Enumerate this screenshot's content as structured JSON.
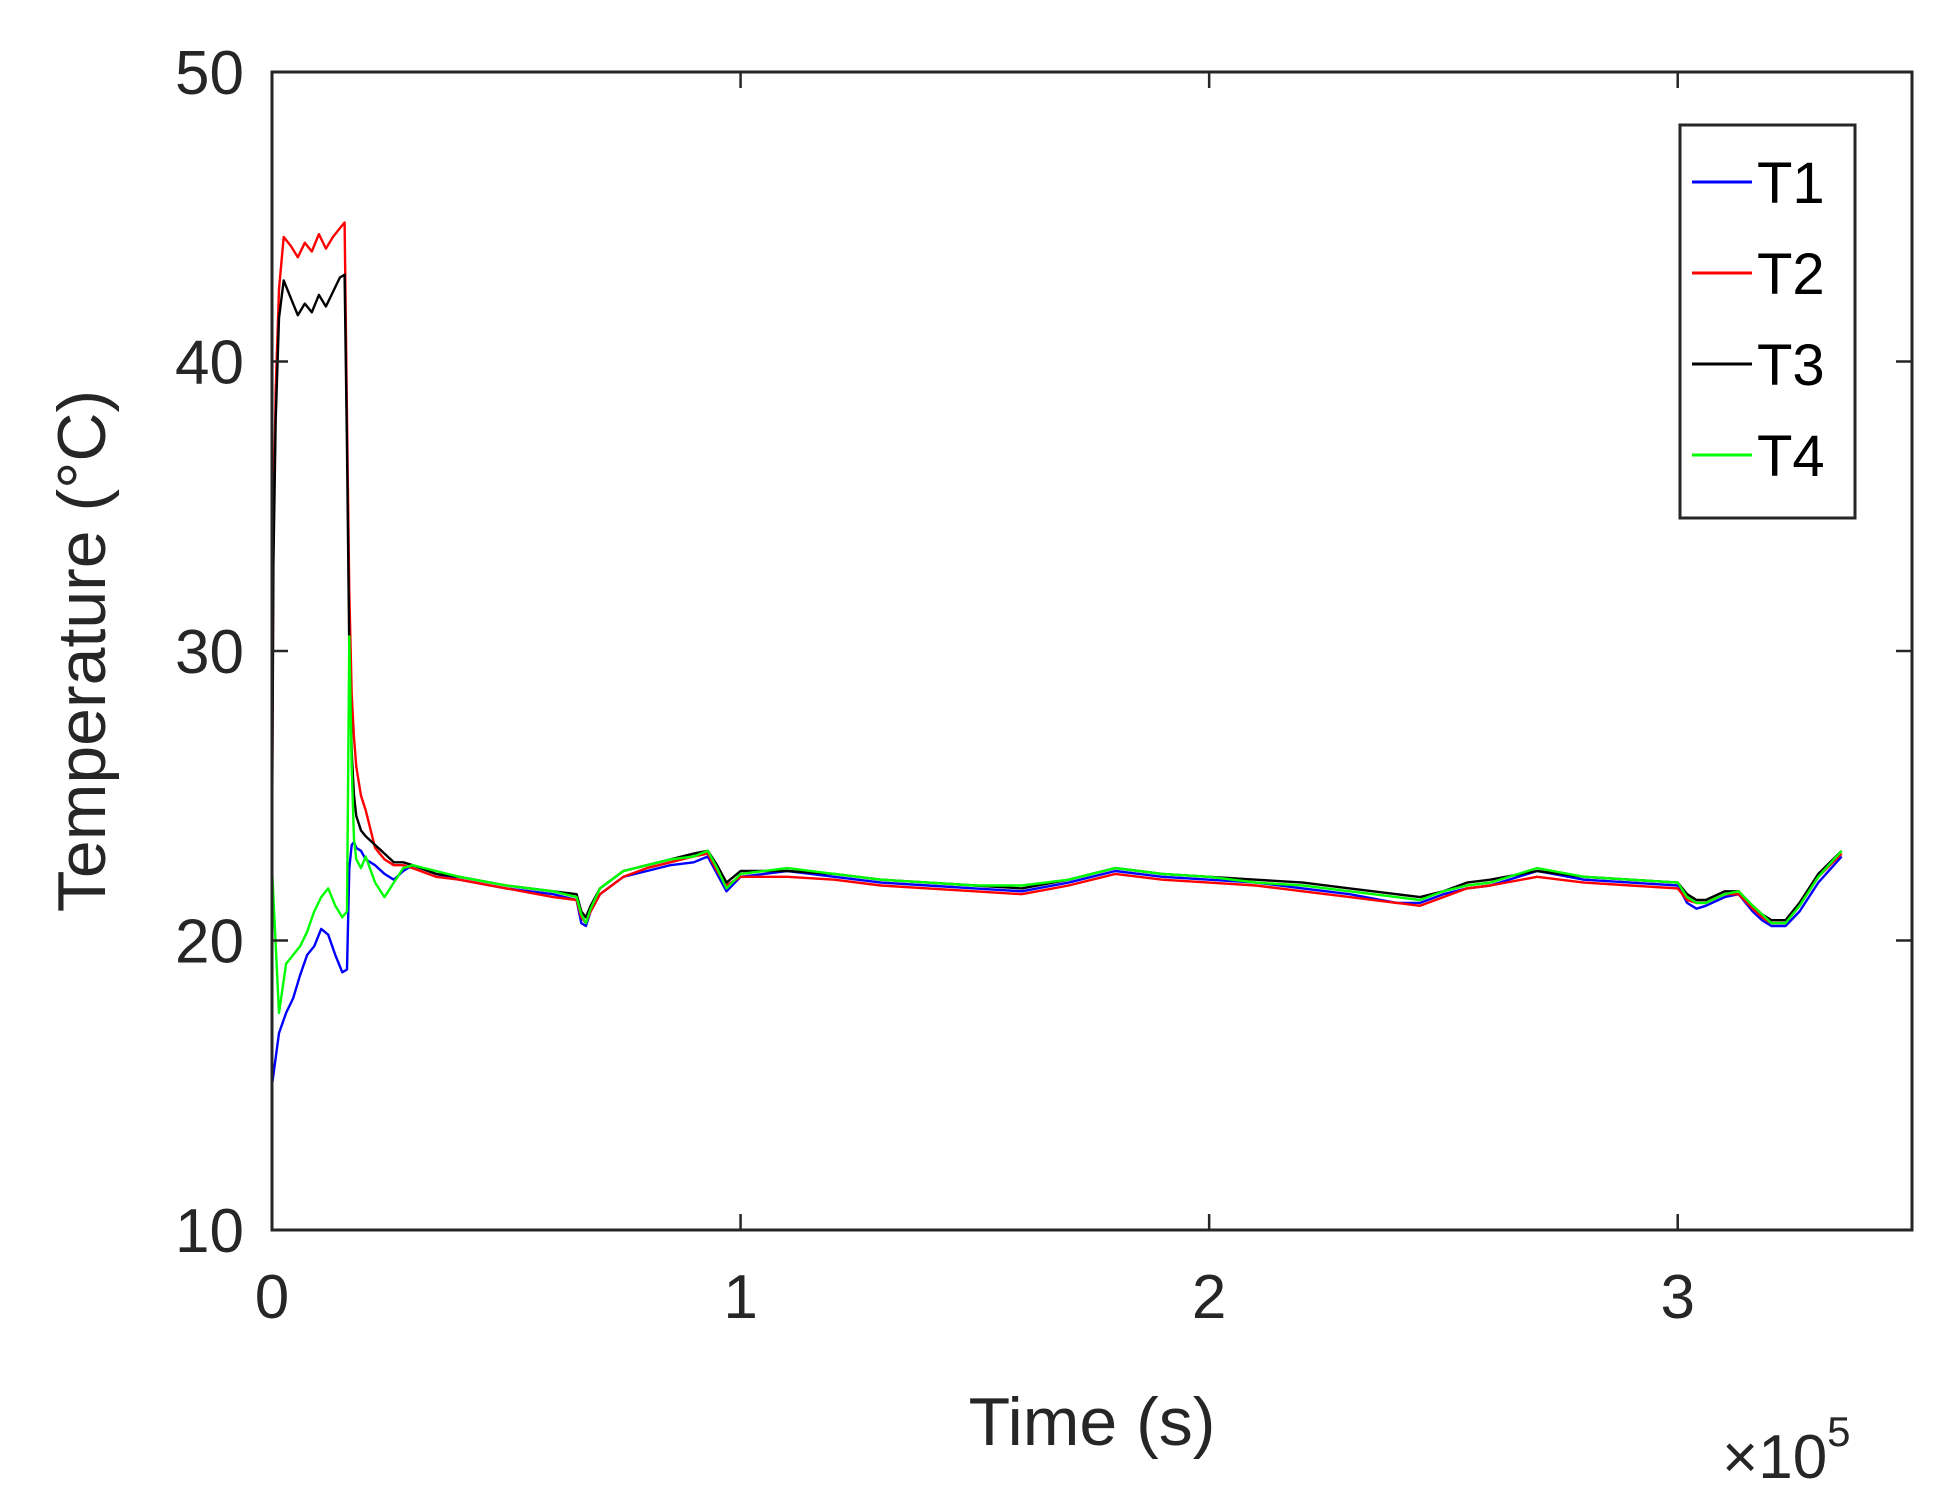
{
  "chart_data": {
    "type": "line",
    "xlabel": "Time (s)",
    "ylabel": "Temperature (°C)",
    "x_multiplier": {
      "base": "×10",
      "exponent": "5"
    },
    "xlim": [
      0,
      350000
    ],
    "ylim": [
      10,
      50
    ],
    "x_ticks": [
      0,
      100000,
      200000,
      300000
    ],
    "x_tick_labels": [
      "0",
      "1",
      "2",
      "3"
    ],
    "y_ticks": [
      10,
      20,
      30,
      40,
      50
    ],
    "y_tick_labels": [
      "10",
      "20",
      "30",
      "40",
      "50"
    ],
    "grid": false,
    "legend_position": "top-right",
    "series": [
      {
        "name": "T1",
        "color": "#0000ff",
        "x": [
          0,
          1500,
          3000,
          4500,
          6000,
          7500,
          9000,
          10500,
          12000,
          13500,
          15000,
          16000,
          16500,
          17000,
          17500,
          18000,
          19000,
          20000,
          22000,
          24000,
          26000,
          28000,
          30000,
          35000,
          40000,
          50000,
          60000,
          65000,
          66000,
          67000,
          68000,
          70000,
          75000,
          80000,
          85000,
          90000,
          93000,
          95000,
          97000,
          100000,
          110000,
          120000,
          130000,
          140000,
          150000,
          160000,
          170000,
          180000,
          190000,
          200000,
          210000,
          220000,
          230000,
          240000,
          245000,
          250000,
          255000,
          260000,
          270000,
          280000,
          290000,
          300000,
          302000,
          304000,
          306000,
          310000,
          313000,
          316000,
          318000,
          320000,
          323000,
          326000,
          330000,
          335000
        ],
        "values": [
          15.0,
          16.8,
          17.5,
          18.0,
          18.8,
          19.5,
          19.8,
          20.4,
          20.2,
          19.5,
          18.9,
          19.0,
          22.5,
          23.3,
          23.4,
          23.2,
          23.1,
          22.8,
          22.6,
          22.3,
          22.1,
          22.4,
          22.6,
          22.3,
          22.1,
          21.8,
          21.6,
          21.4,
          20.6,
          20.5,
          21.0,
          21.6,
          22.2,
          22.4,
          22.6,
          22.7,
          22.9,
          22.3,
          21.7,
          22.2,
          22.4,
          22.2,
          22.0,
          21.9,
          21.8,
          21.7,
          22.0,
          22.4,
          22.2,
          22.1,
          22.0,
          21.8,
          21.6,
          21.3,
          21.3,
          21.6,
          21.8,
          21.9,
          22.4,
          22.1,
          22.0,
          21.9,
          21.3,
          21.1,
          21.2,
          21.5,
          21.6,
          21.0,
          20.7,
          20.5,
          20.5,
          21.0,
          22.0,
          22.9
        ]
      },
      {
        "name": "T2",
        "color": "#ff0000",
        "x": [
          0,
          300,
          800,
          1500,
          2500,
          4000,
          5500,
          7000,
          8500,
          10000,
          11500,
          13000,
          14500,
          15500,
          16000,
          16500,
          17000,
          17500,
          18000,
          19000,
          20000,
          22000,
          24000,
          26000,
          28000,
          30000,
          35000,
          40000,
          50000,
          60000,
          65000,
          66000,
          67000,
          68000,
          70000,
          75000,
          80000,
          85000,
          90000,
          93000,
          95000,
          97000,
          100000,
          110000,
          120000,
          130000,
          140000,
          150000,
          160000,
          170000,
          180000,
          190000,
          200000,
          210000,
          220000,
          230000,
          240000,
          245000,
          250000,
          255000,
          260000,
          270000,
          280000,
          290000,
          300000,
          302000,
          304000,
          306000,
          310000,
          313000,
          316000,
          318000,
          320000,
          323000,
          326000,
          330000,
          335000
        ],
        "values": [
          23.5,
          34.0,
          39.0,
          42.5,
          44.3,
          44.0,
          43.6,
          44.1,
          43.8,
          44.4,
          43.9,
          44.3,
          44.6,
          44.8,
          38.0,
          32.0,
          28.5,
          27.0,
          26.0,
          25.0,
          24.5,
          23.2,
          22.8,
          22.6,
          22.6,
          22.5,
          22.2,
          22.1,
          21.8,
          21.5,
          21.4,
          20.8,
          20.6,
          21.0,
          21.6,
          22.2,
          22.5,
          22.7,
          22.9,
          23.0,
          22.4,
          21.9,
          22.2,
          22.2,
          22.1,
          21.9,
          21.8,
          21.7,
          21.6,
          21.9,
          22.3,
          22.1,
          22.0,
          21.9,
          21.7,
          21.5,
          21.3,
          21.2,
          21.5,
          21.8,
          21.9,
          22.2,
          22.0,
          21.9,
          21.8,
          21.4,
          21.3,
          21.3,
          21.6,
          21.6,
          21.1,
          20.8,
          20.6,
          20.6,
          21.2,
          22.2,
          23.0
        ]
      },
      {
        "name": "T3",
        "color": "#000000",
        "x": [
          0,
          300,
          800,
          1500,
          2500,
          4000,
          5500,
          7000,
          8500,
          10000,
          11500,
          13000,
          14500,
          15500,
          16000,
          16500,
          17000,
          17500,
          18000,
          19000,
          20000,
          22000,
          24000,
          26000,
          28000,
          30000,
          35000,
          40000,
          50000,
          60000,
          65000,
          66000,
          67000,
          68000,
          70000,
          75000,
          80000,
          85000,
          90000,
          93000,
          95000,
          97000,
          100000,
          110000,
          120000,
          130000,
          140000,
          150000,
          160000,
          170000,
          180000,
          190000,
          200000,
          210000,
          220000,
          230000,
          240000,
          245000,
          250000,
          255000,
          260000,
          270000,
          280000,
          290000,
          300000,
          302000,
          304000,
          306000,
          310000,
          313000,
          316000,
          318000,
          320000,
          323000,
          326000,
          330000,
          335000
        ],
        "values": [
          23.0,
          33.0,
          38.0,
          41.5,
          42.8,
          42.2,
          41.6,
          42.0,
          41.7,
          42.3,
          41.9,
          42.4,
          42.9,
          43.0,
          37.0,
          30.0,
          26.5,
          25.0,
          24.3,
          23.8,
          23.6,
          23.3,
          23.0,
          22.7,
          22.7,
          22.6,
          22.3,
          22.2,
          21.9,
          21.7,
          21.6,
          21.0,
          20.8,
          21.2,
          21.8,
          22.4,
          22.6,
          22.8,
          23.0,
          23.1,
          22.6,
          22.0,
          22.4,
          22.4,
          22.3,
          22.1,
          22.0,
          21.9,
          21.8,
          22.1,
          22.5,
          22.3,
          22.2,
          22.1,
          22.0,
          21.8,
          21.6,
          21.5,
          21.7,
          22.0,
          22.1,
          22.4,
          22.2,
          22.1,
          22.0,
          21.6,
          21.4,
          21.4,
          21.7,
          21.7,
          21.2,
          20.9,
          20.7,
          20.7,
          21.3,
          22.3,
          23.1
        ]
      },
      {
        "name": "T4",
        "color": "#00ff00",
        "x": [
          0,
          1500,
          3000,
          4500,
          6000,
          7500,
          9000,
          10500,
          12000,
          13500,
          15000,
          16000,
          16500,
          17000,
          17500,
          18000,
          19000,
          20000,
          22000,
          24000,
          26000,
          28000,
          30000,
          35000,
          40000,
          50000,
          60000,
          65000,
          66000,
          67000,
          68000,
          70000,
          75000,
          80000,
          85000,
          90000,
          93000,
          95000,
          97000,
          100000,
          110000,
          120000,
          130000,
          140000,
          150000,
          160000,
          170000,
          180000,
          190000,
          200000,
          210000,
          220000,
          230000,
          240000,
          245000,
          250000,
          255000,
          260000,
          270000,
          280000,
          290000,
          300000,
          302000,
          304000,
          306000,
          310000,
          313000,
          316000,
          318000,
          320000,
          323000,
          326000,
          330000,
          335000
        ],
        "values": [
          22.5,
          17.5,
          19.2,
          19.5,
          19.8,
          20.3,
          21.0,
          21.5,
          21.8,
          21.2,
          20.8,
          21.0,
          30.5,
          26.0,
          23.5,
          22.8,
          22.5,
          22.9,
          22.0,
          21.5,
          22.0,
          22.5,
          22.6,
          22.4,
          22.2,
          21.9,
          21.7,
          21.5,
          20.9,
          20.6,
          21.1,
          21.8,
          22.4,
          22.6,
          22.8,
          22.9,
          23.1,
          22.5,
          21.8,
          22.3,
          22.5,
          22.3,
          22.1,
          22.0,
          21.9,
          21.9,
          22.1,
          22.5,
          22.3,
          22.2,
          22.0,
          21.9,
          21.7,
          21.5,
          21.4,
          21.7,
          21.9,
          22.0,
          22.5,
          22.2,
          22.1,
          22.0,
          21.5,
          21.3,
          21.3,
          21.6,
          21.7,
          21.2,
          20.9,
          20.6,
          20.6,
          21.2,
          22.2,
          23.1
        ]
      }
    ]
  }
}
